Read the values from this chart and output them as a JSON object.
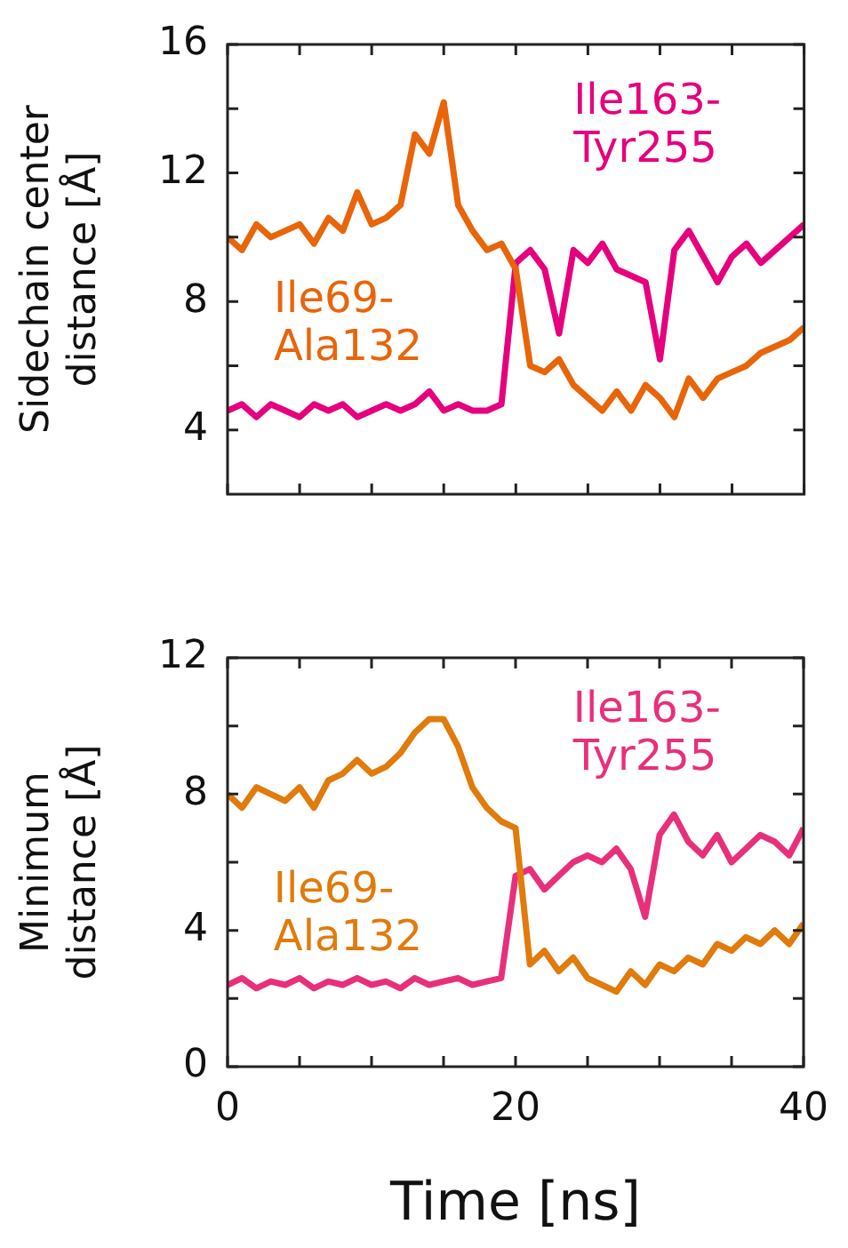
{
  "chart_data": [
    {
      "type": "line",
      "ylabel": "Sidechain center distance [Å]",
      "tick_labels": "y",
      "xlim": [
        0,
        40
      ],
      "xticks": [
        0,
        {
          "value": 5,
          "label": null
        },
        {
          "value": 10,
          "label": null
        },
        {
          "value": 15,
          "label": null
        },
        20,
        {
          "value": 25,
          "label": null
        },
        {
          "value": 30,
          "label": null
        },
        {
          "value": 35,
          "label": null
        },
        40
      ],
      "ylim": [
        2,
        16
      ],
      "yticks": [
        4,
        {
          "value": 6,
          "label": null
        },
        8,
        {
          "value": 10,
          "label": null
        },
        12,
        {
          "value": 14,
          "label": null
        },
        16
      ],
      "marker": "none",
      "x": [
        0,
        1,
        2,
        3,
        4,
        5,
        6,
        7,
        8,
        9,
        10,
        11,
        12,
        13,
        14,
        15,
        16,
        17,
        18,
        19,
        20,
        21,
        22,
        23,
        24,
        25,
        26,
        27,
        28,
        29,
        30,
        31,
        32,
        33,
        34,
        35,
        36,
        37,
        38,
        39,
        40
      ],
      "series": [
        {
          "name": "Ile69-Ala132",
          "color": "#e8650a",
          "values": [
            10.0,
            9.6,
            10.4,
            10.0,
            10.2,
            10.4,
            9.8,
            10.6,
            10.2,
            11.4,
            10.4,
            10.6,
            11.0,
            13.2,
            12.6,
            14.2,
            11.0,
            10.2,
            9.6,
            9.8,
            9.0,
            6.0,
            5.8,
            6.2,
            5.4,
            5.0,
            4.6,
            5.2,
            4.6,
            5.4,
            5.0,
            4.4,
            5.6,
            5.0,
            5.6,
            5.8,
            6.0,
            6.4,
            6.6,
            6.8,
            7.2
          ]
        },
        {
          "name": "Ile163-Tyr255",
          "color": "#e6007e",
          "values": [
            4.6,
            4.8,
            4.4,
            4.8,
            4.6,
            4.4,
            4.8,
            4.6,
            4.8,
            4.4,
            4.6,
            4.8,
            4.6,
            4.8,
            5.2,
            4.6,
            4.8,
            4.6,
            4.6,
            4.8,
            9.2,
            9.6,
            9.0,
            7.0,
            9.6,
            9.2,
            9.8,
            9.0,
            8.8,
            8.6,
            6.2,
            9.6,
            10.2,
            9.4,
            8.6,
            9.4,
            9.8,
            9.2,
            9.6,
            10.0,
            10.4
          ]
        }
      ]
    },
    {
      "type": "line",
      "ylabel": "Minimum distance [Å]",
      "xlabel": "Time [ns]",
      "xlim": [
        0,
        40
      ],
      "xticks": [
        0,
        {
          "value": 5,
          "label": null
        },
        {
          "value": 10,
          "label": null
        },
        {
          "value": 15,
          "label": null
        },
        20,
        {
          "value": 25,
          "label": null
        },
        {
          "value": 30,
          "label": null
        },
        {
          "value": 35,
          "label": null
        },
        40
      ],
      "ylim": [
        0,
        12
      ],
      "yticks": [
        0,
        {
          "value": 2,
          "label": null
        },
        4,
        {
          "value": 6,
          "label": null
        },
        8,
        {
          "value": 10,
          "label": null
        },
        12
      ],
      "marker": "none",
      "x": [
        0,
        1,
        2,
        3,
        4,
        5,
        6,
        7,
        8,
        9,
        10,
        11,
        12,
        13,
        14,
        15,
        16,
        17,
        18,
        19,
        20,
        21,
        22,
        23,
        24,
        25,
        26,
        27,
        28,
        29,
        30,
        31,
        32,
        33,
        34,
        35,
        36,
        37,
        38,
        39,
        40
      ],
      "series": [
        {
          "name": "Ile69-Ala132",
          "color": "#e07b0c",
          "values": [
            8.0,
            7.6,
            8.2,
            8.0,
            7.8,
            8.2,
            7.6,
            8.4,
            8.6,
            9.0,
            8.6,
            8.8,
            9.2,
            9.8,
            10.2,
            10.2,
            9.4,
            8.2,
            7.6,
            7.2,
            7.0,
            3.0,
            3.4,
            2.8,
            3.2,
            2.6,
            2.4,
            2.2,
            2.8,
            2.4,
            3.0,
            2.8,
            3.2,
            3.0,
            3.6,
            3.4,
            3.8,
            3.6,
            4.0,
            3.6,
            4.2
          ]
        },
        {
          "name": "Ile163-Tyr255",
          "color": "#e8307a",
          "values": [
            2.4,
            2.6,
            2.3,
            2.5,
            2.4,
            2.6,
            2.3,
            2.5,
            2.4,
            2.6,
            2.4,
            2.5,
            2.3,
            2.6,
            2.4,
            2.5,
            2.6,
            2.4,
            2.5,
            2.6,
            5.6,
            5.8,
            5.2,
            5.6,
            6.0,
            6.2,
            6.0,
            6.4,
            5.8,
            4.4,
            6.8,
            7.4,
            6.6,
            6.2,
            6.8,
            6.0,
            6.4,
            6.8,
            6.6,
            6.2,
            7.0
          ]
        }
      ]
    }
  ]
}
